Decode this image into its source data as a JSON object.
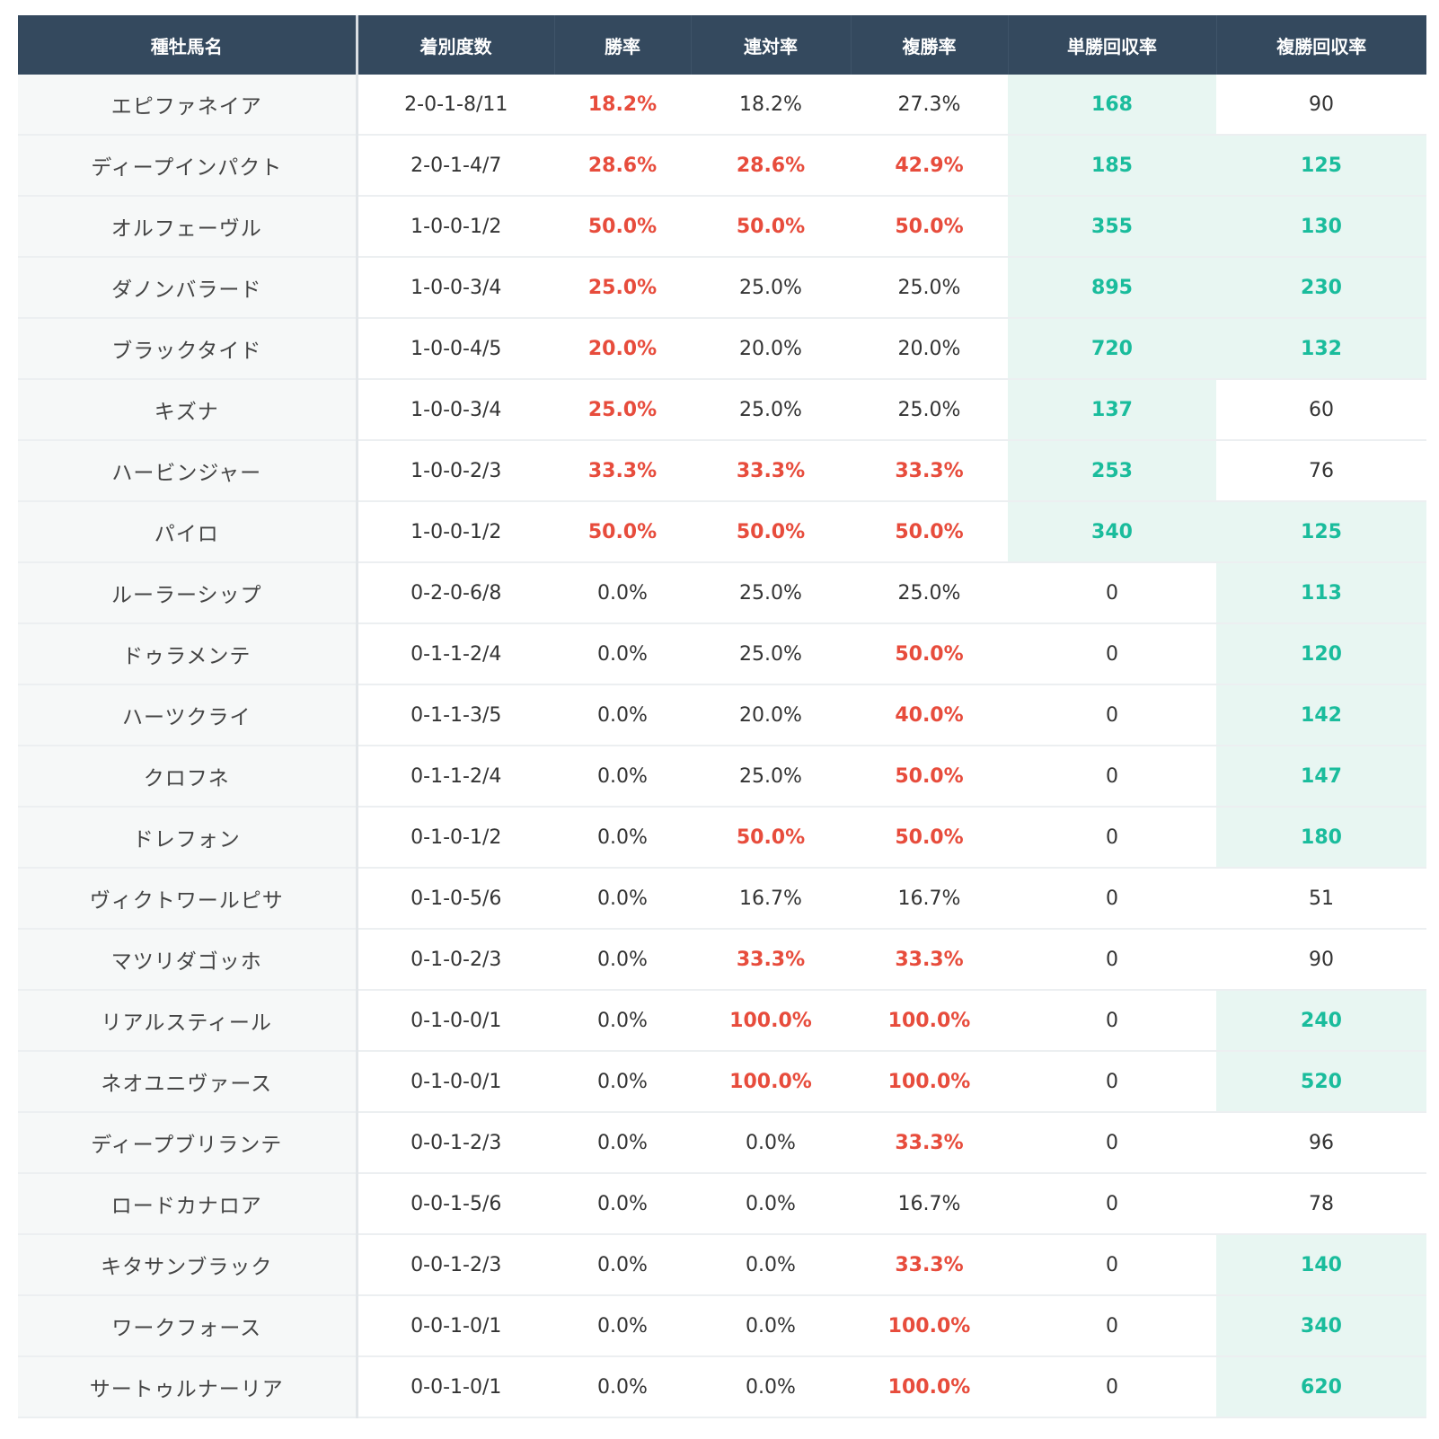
{
  "table": {
    "headers": [
      "種牡馬名",
      "着別度数",
      "勝率",
      "連対率",
      "複勝率",
      "単勝回収率",
      "複勝回収率"
    ],
    "rows": [
      {
        "name": "エピファネイア",
        "record": "2-0-1-8/11",
        "win": "18.2%",
        "rentai": "18.2%",
        "fukusho": "27.3%",
        "tansho_return": "168",
        "fukusho_return": "90"
      },
      {
        "name": "ディープインパクト",
        "record": "2-0-1-4/7",
        "win": "28.6%",
        "rentai": "28.6%",
        "fukusho": "42.9%",
        "tansho_return": "185",
        "fukusho_return": "125"
      },
      {
        "name": "オルフェーヴル",
        "record": "1-0-0-1/2",
        "win": "50.0%",
        "rentai": "50.0%",
        "fukusho": "50.0%",
        "tansho_return": "355",
        "fukusho_return": "130"
      },
      {
        "name": "ダノンバラード",
        "record": "1-0-0-3/4",
        "win": "25.0%",
        "rentai": "25.0%",
        "fukusho": "25.0%",
        "tansho_return": "895",
        "fukusho_return": "230"
      },
      {
        "name": "ブラックタイド",
        "record": "1-0-0-4/5",
        "win": "20.0%",
        "rentai": "20.0%",
        "fukusho": "20.0%",
        "tansho_return": "720",
        "fukusho_return": "132"
      },
      {
        "name": "キズナ",
        "record": "1-0-0-3/4",
        "win": "25.0%",
        "rentai": "25.0%",
        "fukusho": "25.0%",
        "tansho_return": "137",
        "fukusho_return": "60"
      },
      {
        "name": "ハービンジャー",
        "record": "1-0-0-2/3",
        "win": "33.3%",
        "rentai": "33.3%",
        "fukusho": "33.3%",
        "tansho_return": "253",
        "fukusho_return": "76"
      },
      {
        "name": "パイロ",
        "record": "1-0-0-1/2",
        "win": "50.0%",
        "rentai": "50.0%",
        "fukusho": "50.0%",
        "tansho_return": "340",
        "fukusho_return": "125"
      },
      {
        "name": "ルーラーシップ",
        "record": "0-2-0-6/8",
        "win": "0.0%",
        "rentai": "25.0%",
        "fukusho": "25.0%",
        "tansho_return": "0",
        "fukusho_return": "113"
      },
      {
        "name": "ドゥラメンテ",
        "record": "0-1-1-2/4",
        "win": "0.0%",
        "rentai": "25.0%",
        "fukusho": "50.0%",
        "tansho_return": "0",
        "fukusho_return": "120"
      },
      {
        "name": "ハーツクライ",
        "record": "0-1-1-3/5",
        "win": "0.0%",
        "rentai": "20.0%",
        "fukusho": "40.0%",
        "tansho_return": "0",
        "fukusho_return": "142"
      },
      {
        "name": "クロフネ",
        "record": "0-1-1-2/4",
        "win": "0.0%",
        "rentai": "25.0%",
        "fukusho": "50.0%",
        "tansho_return": "0",
        "fukusho_return": "147"
      },
      {
        "name": "ドレフォン",
        "record": "0-1-0-1/2",
        "win": "0.0%",
        "rentai": "50.0%",
        "fukusho": "50.0%",
        "tansho_return": "0",
        "fukusho_return": "180"
      },
      {
        "name": "ヴィクトワールピサ",
        "record": "0-1-0-5/6",
        "win": "0.0%",
        "rentai": "16.7%",
        "fukusho": "16.7%",
        "tansho_return": "0",
        "fukusho_return": "51"
      },
      {
        "name": "マツリダゴッホ",
        "record": "0-1-0-2/3",
        "win": "0.0%",
        "rentai": "33.3%",
        "fukusho": "33.3%",
        "tansho_return": "0",
        "fukusho_return": "90"
      },
      {
        "name": "リアルスティール",
        "record": "0-1-0-0/1",
        "win": "0.0%",
        "rentai": "100.0%",
        "fukusho": "100.0%",
        "tansho_return": "0",
        "fukusho_return": "240"
      },
      {
        "name": "ネオユニヴァース",
        "record": "0-1-0-0/1",
        "win": "0.0%",
        "rentai": "100.0%",
        "fukusho": "100.0%",
        "tansho_return": "0",
        "fukusho_return": "520"
      },
      {
        "name": "ディープブリランテ",
        "record": "0-0-1-2/3",
        "win": "0.0%",
        "rentai": "0.0%",
        "fukusho": "33.3%",
        "tansho_return": "0",
        "fukusho_return": "96"
      },
      {
        "name": "ロードカナロア",
        "record": "0-0-1-5/6",
        "win": "0.0%",
        "rentai": "0.0%",
        "fukusho": "16.7%",
        "tansho_return": "0",
        "fukusho_return": "78"
      },
      {
        "name": "キタサンブラック",
        "record": "0-0-1-2/3",
        "win": "0.0%",
        "rentai": "0.0%",
        "fukusho": "33.3%",
        "tansho_return": "0",
        "fukusho_return": "140"
      },
      {
        "name": "ワークフォース",
        "record": "0-0-1-0/1",
        "win": "0.0%",
        "rentai": "0.0%",
        "fukusho": "100.0%",
        "tansho_return": "0",
        "fukusho_return": "340"
      },
      {
        "name": "サートゥルナーリア",
        "record": "0-0-1-0/1",
        "win": "0.0%",
        "rentai": "0.0%",
        "fukusho": "100.0%",
        "tansho_return": "0",
        "fukusho_return": "620"
      }
    ]
  }
}
